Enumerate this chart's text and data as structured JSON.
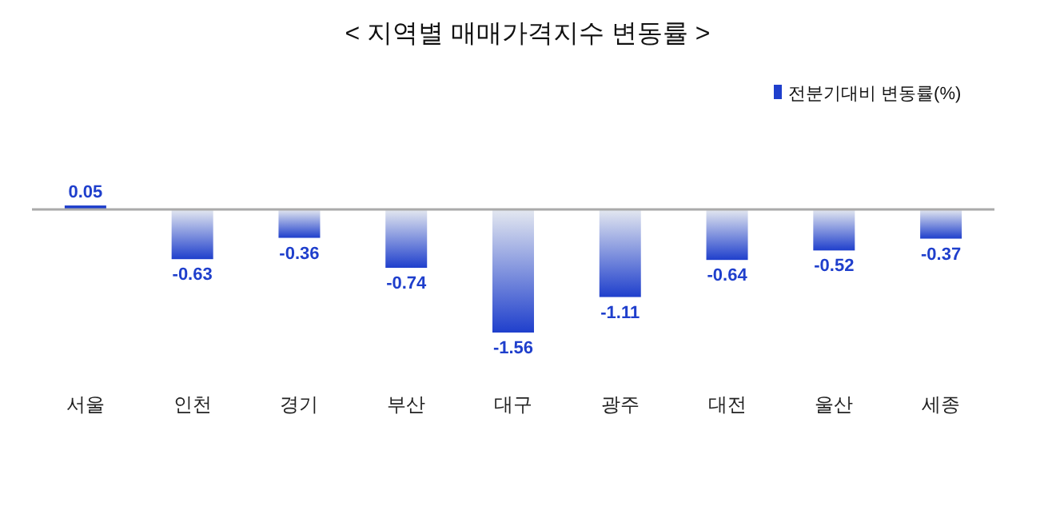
{
  "chart_data": {
    "type": "bar",
    "title": "< 지역별 매매가격지수 변동률 >",
    "categories": [
      "서울",
      "인천",
      "경기",
      "부산",
      "대구",
      "광주",
      "대전",
      "울산",
      "세종"
    ],
    "series": [
      {
        "name": "전분기대비 변동률(%)",
        "color": "#1f3fcc",
        "values": [
          0.05,
          -0.63,
          -0.36,
          -0.74,
          -1.56,
          -1.11,
          -0.64,
          -0.52,
          -0.37
        ]
      }
    ],
    "data_labels": true,
    "legend": "top right"
  }
}
